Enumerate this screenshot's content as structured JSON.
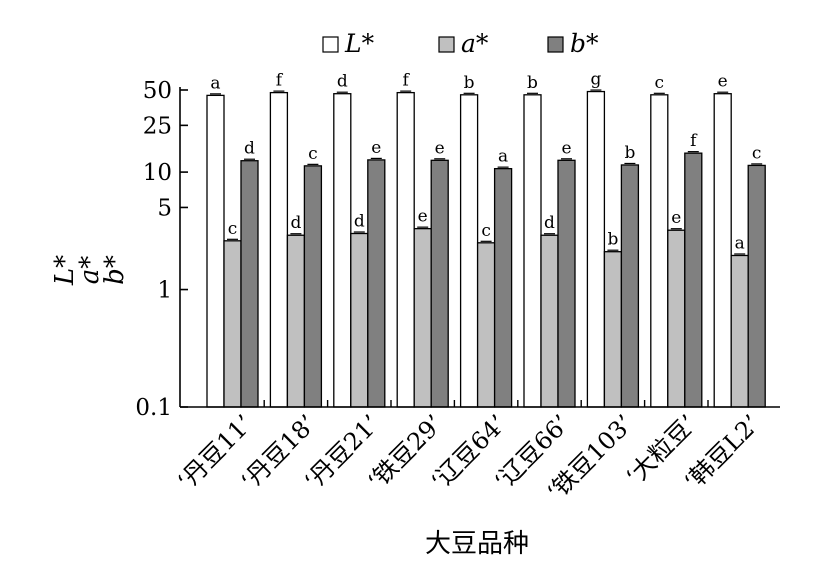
{
  "chart_data": {
    "type": "bar",
    "yscale": "log",
    "ylim": [
      0.1,
      50
    ],
    "yticks": [
      0.1,
      1,
      5,
      10,
      25,
      50
    ],
    "ytick_labels": [
      "0.1",
      "1",
      "5",
      "10",
      "25",
      "50"
    ],
    "ylabel_parts": [
      "L*",
      "a*",
      "b*"
    ],
    "xlabel": "大豆品种",
    "categories": [
      "‘丹豆11’",
      "‘丹豆18’",
      "‘丹豆21’",
      "‘铁豆29’",
      "‘辽豆64’",
      "‘辽豆66’",
      "‘铁豆103’",
      "‘大粒豆’",
      "‘韩豆L2’"
    ],
    "legend_position": "top",
    "series": [
      {
        "name": "L*",
        "color": "#ffffff",
        "values": [
          45.0,
          47.5,
          46.5,
          47.5,
          45.5,
          45.5,
          48.5,
          45.5,
          46.5
        ],
        "sig": [
          "a",
          "f",
          "d",
          "f",
          "b",
          "b",
          "g",
          "c",
          "e"
        ]
      },
      {
        "name": "a*",
        "color": "#c0c0c0",
        "values": [
          2.6,
          2.9,
          3.0,
          3.3,
          2.5,
          2.9,
          2.1,
          3.2,
          1.95
        ],
        "sig": [
          "c",
          "d",
          "d",
          "e",
          "c",
          "d",
          "b",
          "e",
          "a"
        ]
      },
      {
        "name": "b*",
        "color": "#808080",
        "values": [
          12.5,
          11.3,
          12.7,
          12.6,
          10.7,
          12.6,
          11.5,
          14.5,
          11.4
        ],
        "sig": [
          "d",
          "c",
          "e",
          "e",
          "a",
          "e",
          "b",
          "f",
          "c"
        ]
      }
    ]
  }
}
